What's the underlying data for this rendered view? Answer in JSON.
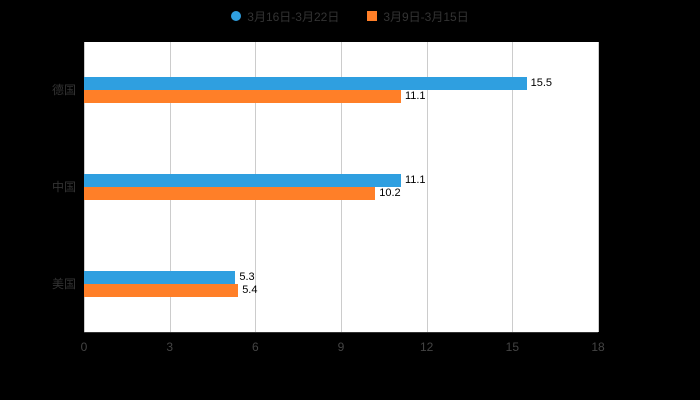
{
  "canvas": {
    "background": "#000000",
    "plot_background": "#ffffff"
  },
  "legend": {
    "items": [
      {
        "label": "3月16日-3月22日",
        "color": "#2f9fe0",
        "shape": "circle"
      },
      {
        "label": "3月9日-3月15日",
        "color": "#ff7f28",
        "shape": "square"
      }
    ],
    "text_color": "#333333",
    "position": "top-center"
  },
  "chart_data": {
    "type": "bar",
    "orientation": "horizontal",
    "title": "",
    "xlabel": "",
    "ylabel": "",
    "categories": [
      "德国",
      "中国",
      "美国"
    ],
    "series": [
      {
        "name": "3月16日-3月22日",
        "color": "#2f9fe0",
        "values": [
          15.5,
          11.1,
          5.3
        ]
      },
      {
        "name": "3月9日-3月15日",
        "color": "#ff7f28",
        "values": [
          11.1,
          10.2,
          5.4
        ]
      }
    ],
    "x_ticks": [
      "0",
      "3",
      "6",
      "9",
      "12",
      "15",
      "18"
    ],
    "x_tick_values": [
      0,
      3,
      6,
      9,
      12,
      15,
      18
    ],
    "xlim": [
      0,
      18
    ],
    "grid": true,
    "grid_color": "#cccccc",
    "axis_line_color": "#333333",
    "tick_label_color": "#444444",
    "category_label_color": "#333333",
    "value_label_color": "#000000",
    "value_labels": true,
    "legend_position": "top"
  }
}
